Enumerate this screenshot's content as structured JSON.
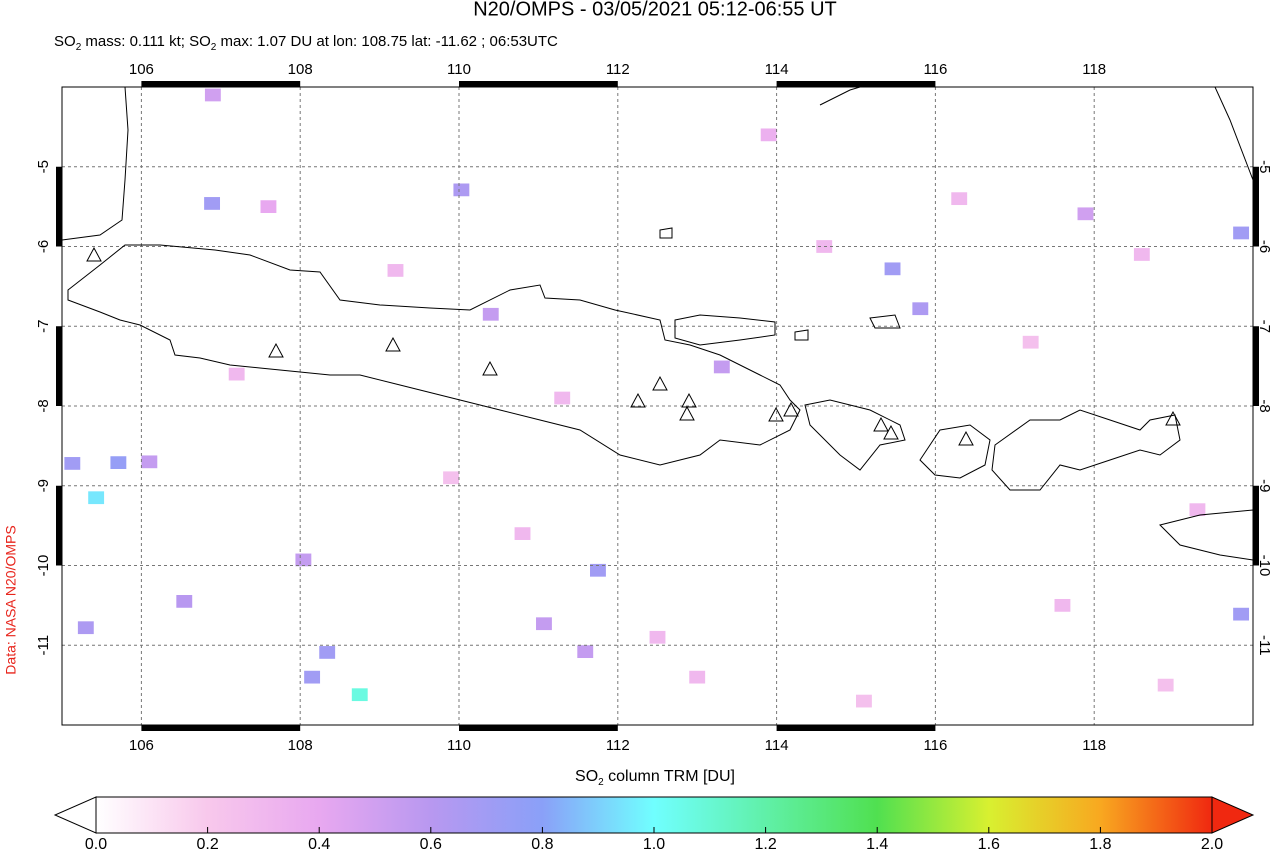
{
  "title": "N20/OMPS - 03/05/2021 05:12-06:55 UT",
  "subtitle_parts": [
    "SO",
    "2",
    " mass: 0.111 kt; SO",
    "2",
    " max: 1.07 DU at lon: 108.75 lat: -11.62 ; 06:53UTC"
  ],
  "credit": "Data: NASA N20/OMPS",
  "map": {
    "xlim": [
      105,
      120
    ],
    "ylim": [
      -12,
      -4
    ],
    "xticks": [
      106,
      108,
      110,
      112,
      114,
      116,
      118
    ],
    "yticks": [
      -5,
      -6,
      -7,
      -8,
      -9,
      -10,
      -11
    ],
    "grid": true
  },
  "pixels": {
    "lon": [
      110.03,
      106.89,
      111.75,
      108.75,
      105.43,
      108.34,
      105.13,
      105.71,
      115.46,
      115.81,
      108.15,
      111.59,
      111.07,
      113.31,
      117.89,
      105.3,
      106.54,
      108.04,
      110.4,
      119.85,
      119.85,
      106.9,
      107.6,
      109.2,
      110.8,
      112.5,
      113.9,
      114.6,
      116.3,
      117.2,
      118.6,
      119.3,
      107.2,
      109.9,
      113.0,
      115.1,
      117.6,
      118.9,
      106.1,
      111.3
    ],
    "lat": [
      -5.29,
      -5.46,
      -10.06,
      -11.62,
      -9.15,
      -11.09,
      -8.72,
      -8.71,
      -6.28,
      -6.78,
      -11.4,
      -11.08,
      -10.73,
      -7.51,
      -5.59,
      -10.78,
      -10.45,
      -9.93,
      -6.85,
      -5.83,
      -10.61,
      -4.1,
      -5.5,
      -6.3,
      -9.6,
      -10.9,
      -4.6,
      -6.0,
      -5.4,
      -7.2,
      -6.1,
      -9.3,
      -7.6,
      -8.9,
      -11.4,
      -11.7,
      -10.5,
      -11.5,
      -8.7,
      -7.9
    ],
    "values": [
      0.65,
      0.7,
      0.7,
      1.07,
      0.95,
      0.7,
      0.7,
      0.75,
      0.7,
      0.65,
      0.7,
      0.55,
      0.55,
      0.55,
      0.5,
      0.65,
      0.6,
      0.55,
      0.55,
      0.7,
      0.7,
      0.5,
      0.4,
      0.3,
      0.3,
      0.3,
      0.35,
      0.3,
      0.3,
      0.25,
      0.3,
      0.3,
      0.3,
      0.25,
      0.3,
      0.25,
      0.3,
      0.25,
      0.55,
      0.3
    ]
  },
  "colorbar": {
    "label_parts": [
      "SO",
      "2",
      " column TRM [DU]"
    ],
    "clim": [
      0,
      2
    ],
    "colorscale": [
      "#ffffff",
      "#f8c8ec",
      "#e8a8f0",
      "#b898f0",
      "#8aa0f8",
      "#70ffff",
      "#60f0a8",
      "#50e050",
      "#d8f030",
      "#f8a820",
      "#f02810"
    ],
    "ticks": [
      {
        "value": 0,
        "label": "0.0"
      },
      {
        "value": 0.2,
        "label": "0.2"
      },
      {
        "value": 0.4,
        "label": "0.4"
      },
      {
        "value": 0.6,
        "label": "0.6"
      },
      {
        "value": 0.8,
        "label": "0.8"
      },
      {
        "value": 1,
        "label": "1.0"
      },
      {
        "value": 1.2,
        "label": "1.2"
      },
      {
        "value": 1.4,
        "label": "1.4"
      },
      {
        "value": 1.6,
        "label": "1.6"
      },
      {
        "value": 1.8,
        "label": "1.8"
      },
      {
        "value": 2,
        "label": "2.0"
      }
    ]
  }
}
